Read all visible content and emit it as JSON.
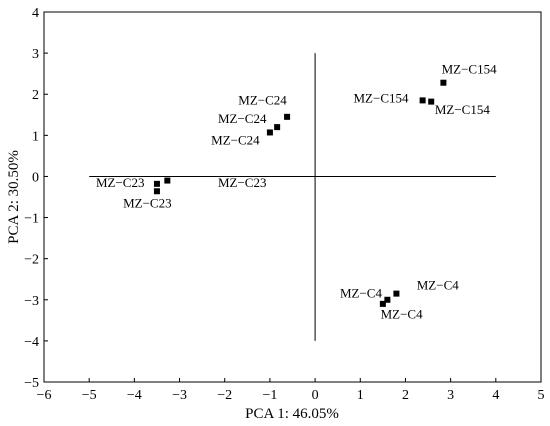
{
  "chart_data": {
    "type": "scatter",
    "title": "",
    "xlabel": "PCA 1: 46.05%",
    "ylabel": "PCA 2: 30.50%",
    "xlim": [
      -6,
      5
    ],
    "ylim": [
      -5,
      4
    ],
    "xticks": [
      -6,
      -5,
      -4,
      -3,
      -2,
      -1,
      0,
      1,
      2,
      3,
      4,
      5
    ],
    "yticks": [
      -5,
      -4,
      -3,
      -2,
      -1,
      0,
      1,
      2,
      3,
      4
    ],
    "xtick_labels": [
      "−6",
      "−5",
      "−4",
      "−3",
      "−2",
      "−1",
      "0",
      "1",
      "2",
      "3",
      "4",
      "5"
    ],
    "ytick_labels": [
      "−5",
      "−4",
      "−3",
      "−2",
      "−1",
      "0",
      "1",
      "2",
      "3",
      "4"
    ],
    "reference_lines": {
      "horizontal": {
        "y": 0,
        "x_from": -5,
        "x_to": 4
      },
      "vertical": {
        "x": 0,
        "y_from": -4,
        "y_to": 3
      }
    },
    "points": [
      {
        "x": -3.5,
        "y": -0.18
      },
      {
        "x": -3.5,
        "y": -0.36
      },
      {
        "x": -3.27,
        "y": -0.1
      },
      {
        "x": -1.0,
        "y": 1.07
      },
      {
        "x": -0.84,
        "y": 1.2
      },
      {
        "x": -0.62,
        "y": 1.45
      },
      {
        "x": 2.38,
        "y": 1.85
      },
      {
        "x": 2.57,
        "y": 1.82
      },
      {
        "x": 2.84,
        "y": 2.28
      },
      {
        "x": 1.5,
        "y": -3.1
      },
      {
        "x": 1.6,
        "y": -3.0
      },
      {
        "x": 1.8,
        "y": -2.85
      }
    ],
    "labels": [
      {
        "text": "MZ−C23",
        "x": -4.85,
        "y": -0.26
      },
      {
        "text": "MZ−C23",
        "x": -2.15,
        "y": -0.26
      },
      {
        "text": "MZ−C23",
        "x": -4.25,
        "y": -0.76
      },
      {
        "text": "MZ−C24",
        "x": -1.7,
        "y": 1.75
      },
      {
        "text": "MZ−C24",
        "x": -2.15,
        "y": 1.3
      },
      {
        "text": "MZ−C24",
        "x": -2.3,
        "y": 0.78
      },
      {
        "text": "MZ−C154",
        "x": 2.8,
        "y": 2.5
      },
      {
        "text": "MZ−C154",
        "x": 0.85,
        "y": 1.8
      },
      {
        "text": "MZ−C154",
        "x": 2.65,
        "y": 1.52
      },
      {
        "text": "MZ−C4",
        "x": 2.25,
        "y": -2.75
      },
      {
        "text": "MZ−C4",
        "x": 0.55,
        "y": -2.95
      },
      {
        "text": "MZ−C4",
        "x": 1.45,
        "y": -3.45
      }
    ],
    "grid": false,
    "legend": "none",
    "marker": "square",
    "color": "#000000"
  }
}
